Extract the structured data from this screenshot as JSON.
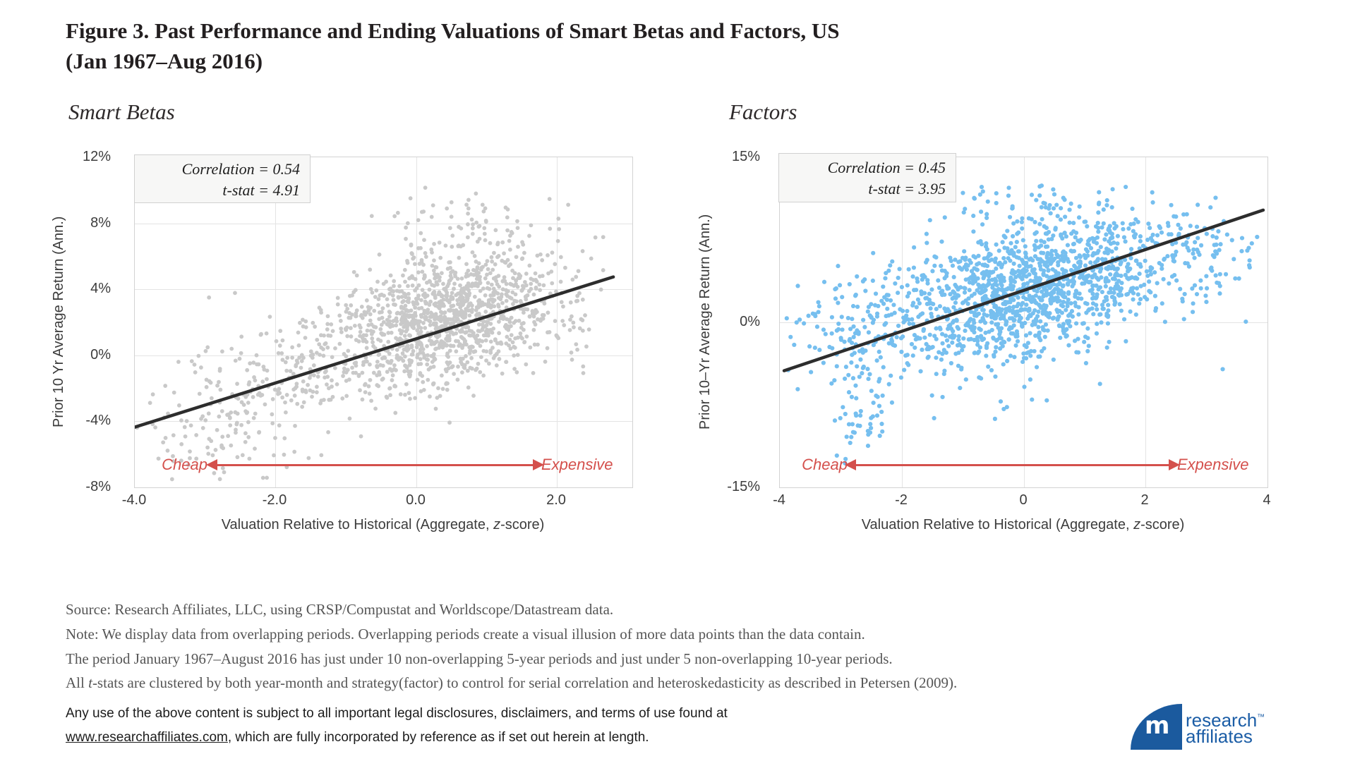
{
  "figure": {
    "title_line1": "Figure 3. Past Performance and Ending Valuations of Smart Betas and Factors, US",
    "title_line2": "(Jan 1967–Aug 2016)"
  },
  "colors": {
    "accent_red": "#d4504c",
    "scatter_gray": "#c9c9c9",
    "scatter_blue": "#76bfef",
    "trend_black": "#2d2d2d",
    "brand_blue": "#1b5a9e"
  },
  "chart_data": [
    {
      "type": "scatter",
      "title": "Smart Betas",
      "correlation": 0.54,
      "t_stat": 4.91,
      "correlation_label": "Correlation = 0.54",
      "tstat_label": "t-stat = 4.91",
      "ylabel": "Prior 10 Yr Average Return (Ann.)",
      "xlabel": {
        "pre": "Valuation Relative to Historical (Aggregate, ",
        "italic": "z",
        "post": "-score)"
      },
      "xlim": [
        -4,
        3.07
      ],
      "ylim": [
        -8,
        12
      ],
      "x_ticks": [
        {
          "v": -4,
          "label": "-4.0"
        },
        {
          "v": -2,
          "label": "-2.0"
        },
        {
          "v": 0,
          "label": "0.0"
        },
        {
          "v": 2,
          "label": "2.0"
        }
      ],
      "y_ticks": [
        {
          "v": 12,
          "label": "12%"
        },
        {
          "v": 8,
          "label": "8%"
        },
        {
          "v": 4,
          "label": "4%"
        },
        {
          "v": 0,
          "label": "0%"
        },
        {
          "v": -4,
          "label": "-4%"
        },
        {
          "v": -8,
          "label": "-8%"
        }
      ],
      "grid_x": [
        -2,
        0,
        2
      ],
      "grid_y": [
        8,
        4,
        0,
        -4
      ],
      "trendline": {
        "x1": -4.0,
        "y1": -4.35,
        "x2": 2.8,
        "y2": 4.75
      },
      "annotations": {
        "cheap": "Cheap",
        "expensive": "Expensive"
      },
      "point_color": "#c9c9c9",
      "point_radius": 2.9,
      "points_seed": 12345,
      "clip": {
        "x": [
          -4,
          2.7
        ],
        "y": [
          -7.6,
          10.6
        ]
      },
      "point_clusters": [
        {
          "n": 950,
          "cx": 0.5,
          "cy": 2.4,
          "sx": 0.72,
          "sy": 2.0,
          "r": 0.35
        },
        {
          "n": 420,
          "cx": -0.4,
          "cy": 0.8,
          "sx": 1.15,
          "sy": 2.3,
          "r": 0.55
        },
        {
          "n": 130,
          "cx": -2.5,
          "cy": -2.6,
          "sx": 0.75,
          "sy": 2.0,
          "r": 0.35
        },
        {
          "n": 70,
          "cx": 0.6,
          "cy": 7.8,
          "sx": 0.8,
          "sy": 1.3,
          "r": 0.2
        },
        {
          "n": 30,
          "cx": 2.2,
          "cy": 3.0,
          "sx": 0.3,
          "sy": 2.2,
          "r": 0.0
        },
        {
          "n": 45,
          "cx": -2.9,
          "cy": -5.5,
          "sx": 0.6,
          "sy": 1.2,
          "r": 0.2
        }
      ]
    },
    {
      "type": "scatter",
      "title": "Factors",
      "correlation": 0.45,
      "t_stat": 3.95,
      "correlation_label": "Correlation = 0.45",
      "tstat_label": "t-stat = 3.95",
      "ylabel": "Prior 10–Yr Average Return (Ann.)",
      "xlabel": {
        "pre": "Valuation Relative to Historical (Aggregate, ",
        "italic": "z",
        "post": "-score)"
      },
      "xlim": [
        -4,
        4
      ],
      "ylim": [
        -15,
        15
      ],
      "x_ticks": [
        {
          "v": -4,
          "label": "-4"
        },
        {
          "v": -2,
          "label": "-2"
        },
        {
          "v": 0,
          "label": "0"
        },
        {
          "v": 2,
          "label": "2"
        },
        {
          "v": 4,
          "label": "4"
        }
      ],
      "y_ticks": [
        {
          "v": 15,
          "label": "15%"
        },
        {
          "v": 0,
          "label": "0%"
        },
        {
          "v": -15,
          "label": "-15%"
        }
      ],
      "grid_x": [
        -2,
        0,
        2
      ],
      "grid_y": [
        0
      ],
      "trendline": {
        "x1": -3.93,
        "y1": -4.4,
        "x2": 3.93,
        "y2": 10.2
      },
      "annotations": {
        "cheap": "Cheap",
        "expensive": "Expensive"
      },
      "point_color": "#76bfef",
      "point_radius": 3.1,
      "points_seed": 67890,
      "clip": {
        "x": [
          -3.92,
          3.85
        ],
        "y": [
          -13.6,
          12.6
        ]
      },
      "point_clusters": [
        {
          "n": 1050,
          "cx": 0.35,
          "cy": 3.6,
          "sx": 1.05,
          "sy": 3.1,
          "r": 0.35
        },
        {
          "n": 420,
          "cx": -0.9,
          "cy": 0.8,
          "sx": 1.15,
          "sy": 3.4,
          "r": 0.35
        },
        {
          "n": 45,
          "cx": -2.6,
          "cy": -8.6,
          "sx": 0.22,
          "sy": 1.7,
          "r": 0.3
        },
        {
          "n": 80,
          "cx": -2.9,
          "cy": -0.5,
          "sx": 0.55,
          "sy": 2.8,
          "r": 0.2
        },
        {
          "n": 80,
          "cx": 2.95,
          "cy": 5.8,
          "sx": 0.45,
          "sy": 2.8,
          "r": 0.0
        },
        {
          "n": 50,
          "cx": 0.3,
          "cy": 10.5,
          "sx": 0.8,
          "sy": 1.0,
          "r": 0.0
        }
      ]
    }
  ],
  "notes": {
    "line1": "Source: Research Affiliates, LLC, using CRSP/Compustat and Worldscope/Datastream data.",
    "line2": "Note: We display data from overlapping periods. Overlapping periods create a visual illusion of more data points than the data contain.",
    "line3": "The period January 1967–August 2016 has just under 10 non-overlapping 5-year periods and just under 5 non-overlapping 10-year periods.",
    "line4_pre": "All ",
    "line4_italic": "t",
    "line4_post": "-stats are clustered by both year-month and strategy(factor) to control for serial correlation and heteroskedasticity as described in Petersen (2009)."
  },
  "legal": {
    "line1": "Any use of the above content is subject to all important legal disclosures, disclaimers, and terms of use found at",
    "link": "www.researchaffiliates.com",
    "line2_rest": ", which are fully incorporated by reference as if set out herein at length."
  },
  "logo": {
    "monogram": "m",
    "name_line1": "research",
    "tm": "™",
    "name_line2": "affiliates"
  }
}
